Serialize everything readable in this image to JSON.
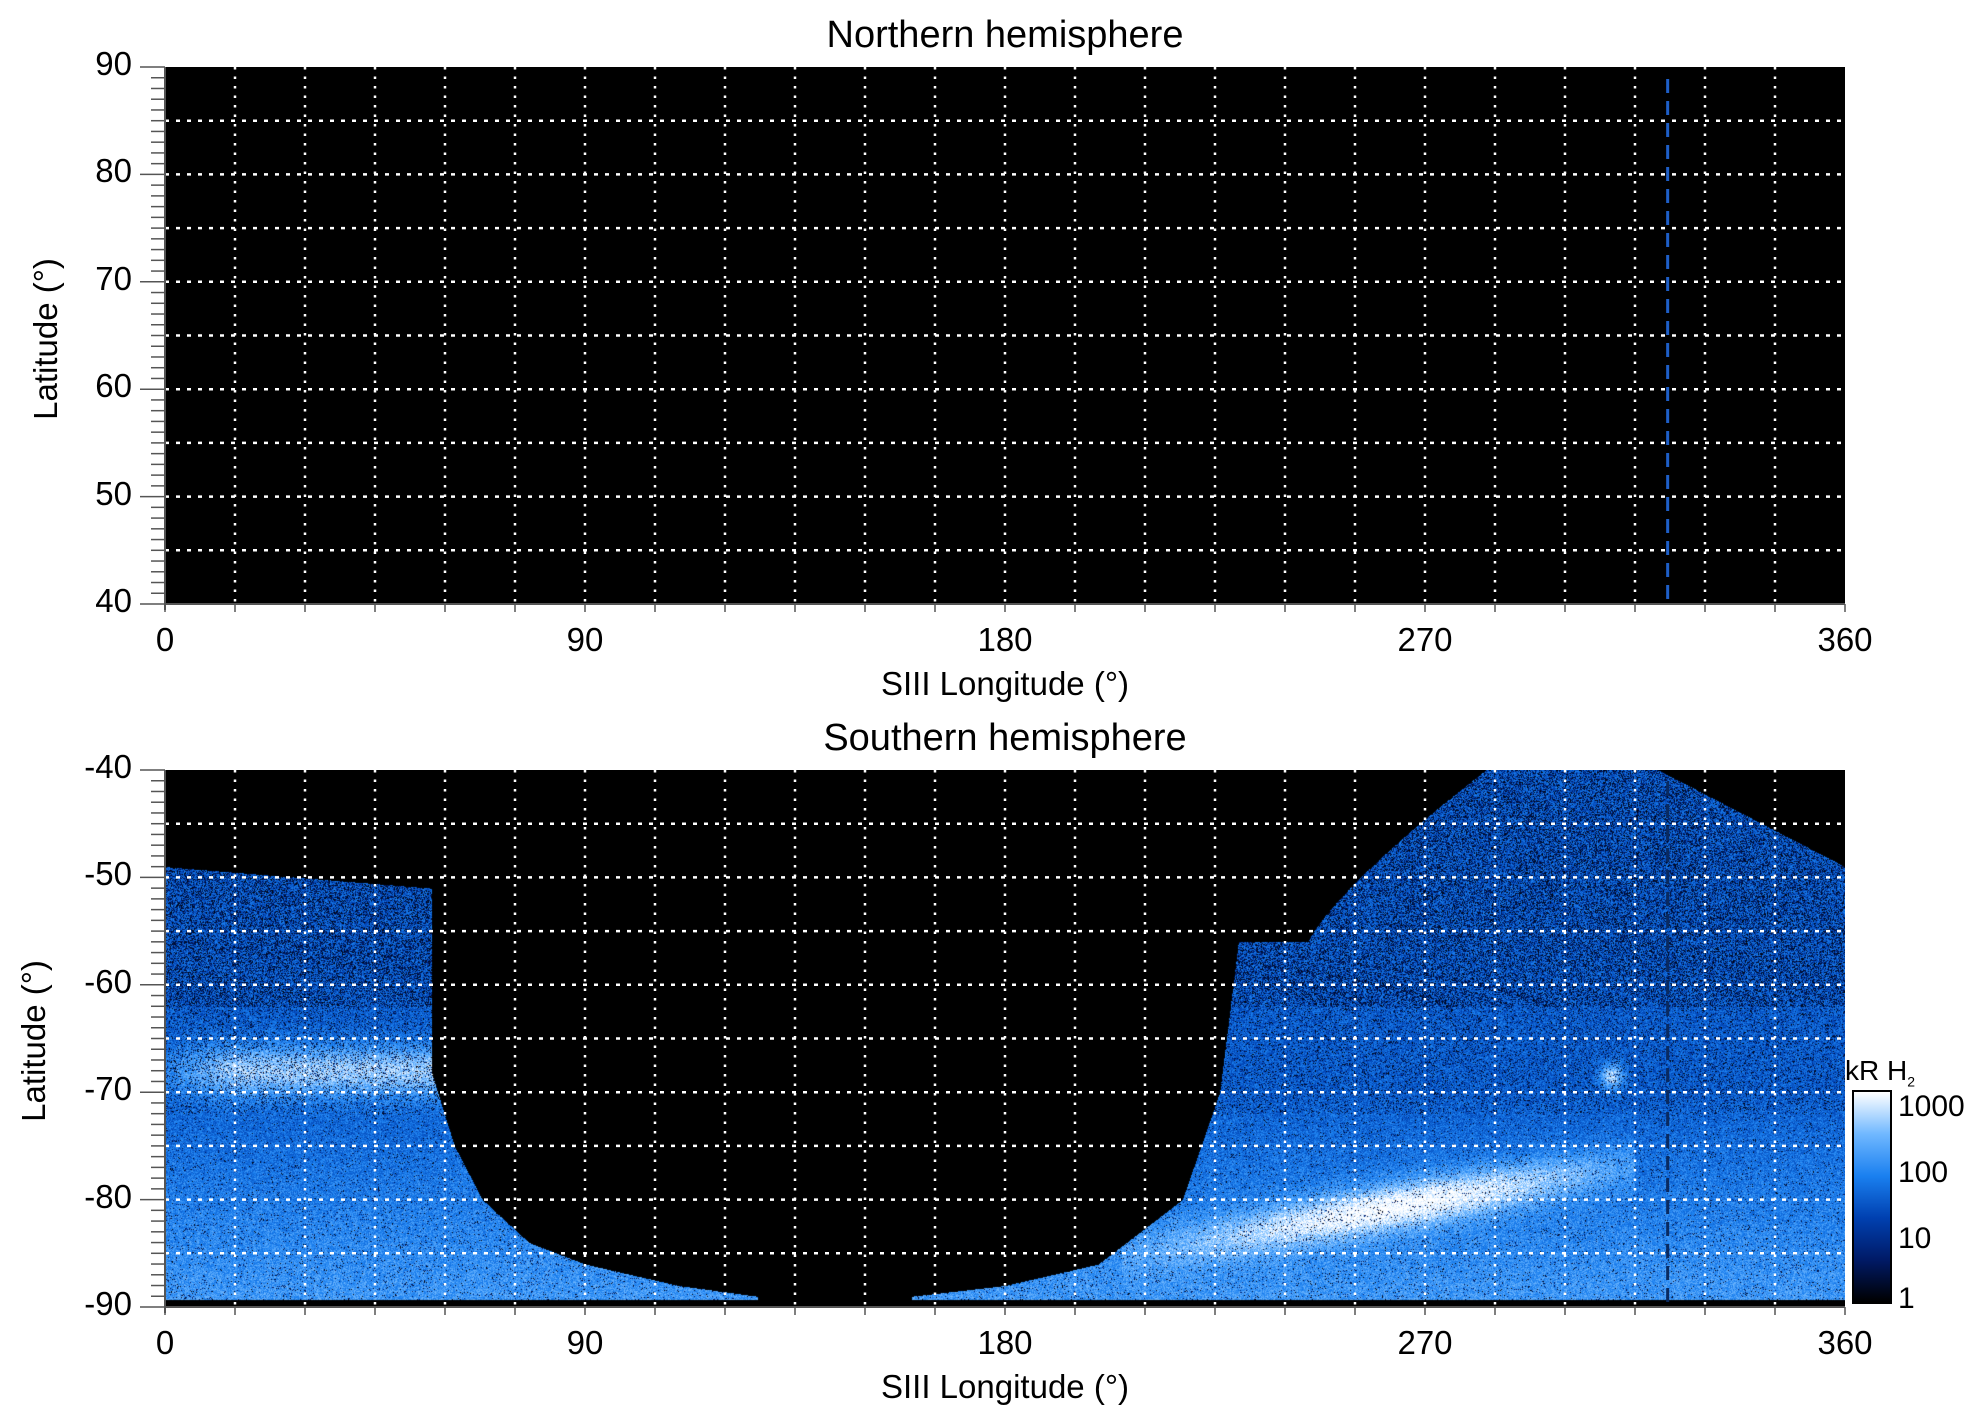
{
  "chart_data": [
    {
      "type": "heatmap",
      "title": "Northern hemisphere",
      "xlabel": "SIII Longitude (°)",
      "ylabel": "Latitude (°)",
      "xlim": [
        0,
        360
      ],
      "ylim": [
        40,
        90
      ],
      "xticks": [
        "0",
        "90",
        "180",
        "270",
        "360"
      ],
      "yticks": [
        "40",
        "50",
        "60",
        "70",
        "80",
        "90"
      ],
      "grid": {
        "x_step": 15,
        "y_step": 5,
        "style": "dotted",
        "color": "#ffffff"
      },
      "reference_line": {
        "longitude": 322,
        "style": "dashed",
        "color": "#1e5fc8"
      },
      "content": "no emission (all black)"
    },
    {
      "type": "heatmap",
      "title": "Southern hemisphere",
      "xlabel": "SIII Longitude (°)",
      "ylabel": "Latitude (°)",
      "xlim": [
        0,
        360
      ],
      "ylim": [
        -90,
        -40
      ],
      "xticks": [
        "0",
        "90",
        "180",
        "270",
        "360"
      ],
      "yticks": [
        "-40",
        "-50",
        "-60",
        "-70",
        "-80",
        "-90"
      ],
      "grid": {
        "x_step": 15,
        "y_step": 5,
        "style": "dotted",
        "color": "#ffffff"
      },
      "reference_line": {
        "longitude": 322,
        "style": "dashed",
        "color": "#0a2a60"
      },
      "features": [
        {
          "name": "main oval segment (left)",
          "lon_range": [
            0,
            57
          ],
          "lat": -68,
          "peak_kR": 1000
        },
        {
          "name": "main oval arc (right)",
          "lon_range": [
            220,
            310
          ],
          "lat_range": [
            -84,
            -78
          ],
          "peak_kR": 1000
        },
        {
          "name": "bright spot",
          "lon": 310,
          "lat": -68,
          "peak_kR": 1000
        }
      ],
      "colorbar": {
        "label": "kR H",
        "label_sub": "2",
        "scale": "log",
        "range": [
          1,
          1000
        ],
        "ticks": [
          "1000",
          "100",
          "10",
          "1"
        ],
        "colors": [
          "#000000",
          "#001a66",
          "#0040b0",
          "#1a80f0",
          "#70b8ff",
          "#ffffff"
        ]
      }
    }
  ]
}
